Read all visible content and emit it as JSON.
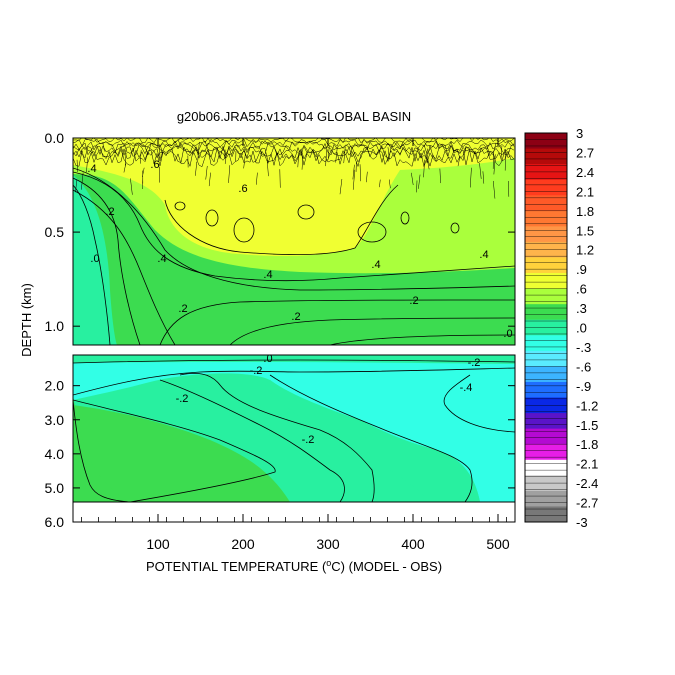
{
  "chart_data": {
    "type": "heatmap",
    "title": "g20b06.JRA55.v13.T04 GLOBAL BASIN",
    "xlabel_parts": [
      "POTENTIAL TEMPERATURE (",
      "o",
      "C) (MODEL - OBS)"
    ],
    "ylabel": "DEPTH (km)",
    "x_range": [
      0,
      520
    ],
    "x_ticks": [
      "100",
      "200",
      "300",
      "400",
      "500"
    ],
    "upper_panel": {
      "y_range": [
        0.0,
        1.1
      ],
      "y_ticks": [
        "0.0",
        "0.5",
        "1.0"
      ]
    },
    "lower_panel": {
      "y_range": [
        1.1,
        6.0
      ],
      "y_ticks": [
        "2.0",
        "3.0",
        "4.0",
        "5.0",
        "6.0"
      ]
    },
    "colorbar": {
      "range": [
        -3,
        3
      ],
      "labels": [
        "3",
        "2.7",
        "2.4",
        "2.1",
        "1.8",
        "1.5",
        "1.2",
        ".9",
        ".6",
        ".3",
        ".0",
        "-.3",
        "-.6",
        "-.9",
        "-1.2",
        "-1.5",
        "-1.8",
        "-2.1",
        "-2.4",
        "-2.7",
        "-3"
      ],
      "colors": [
        "#8c0014",
        "#b40a0a",
        "#e61414",
        "#ff3c1e",
        "#ff5a28",
        "#ff7832",
        "#ff9646",
        "#ffb44b",
        "#ffd23c",
        "#f0ff32",
        "#aaff3c",
        "#3cdc50",
        "#28f0a0",
        "#32ffe6",
        "#5aebff",
        "#3cb4ff",
        "#1e6eff",
        "#0a28e6",
        "#5a14c8",
        "#b40ad2",
        "#e61ee6",
        "#ffffff",
        "#c8c8c8",
        "#a0a0a0",
        "#787878"
      ]
    },
    "contour_labels_upper": [
      ".6",
      ".6",
      ".4",
      ".2",
      ".0",
      ".4",
      ".4",
      ".4",
      ".4",
      ".2",
      ".2",
      ".2",
      ".0"
    ],
    "contour_labels_lower": [
      ".0",
      "-.2",
      "-.2",
      "-.2",
      "-.2",
      "-.4"
    ],
    "colors": {
      "upper_base": "#3cdc50",
      "lower_base": "#28f0a0",
      "warm_band": "#aaff3c",
      "hot_band": "#f0ff32",
      "cool_band": "#32ffe6"
    }
  }
}
